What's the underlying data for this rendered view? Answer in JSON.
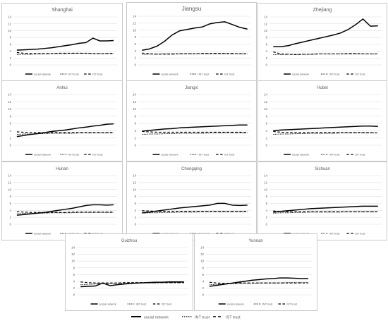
{
  "legend": {
    "social": "social network",
    "int": "INT trust",
    "ist": "IST trust"
  },
  "colors": {
    "line": "#000000",
    "grid": "#d9d9d9",
    "text": "#595959",
    "border": "#c8c8c8"
  },
  "chart_data": [
    {
      "type": "line",
      "title": "Shanghai",
      "x": [
        1,
        2,
        3,
        4,
        5,
        6,
        7,
        8,
        9,
        10,
        11,
        12,
        13,
        14,
        15
      ],
      "ylim": [
        0,
        14
      ],
      "yticks": [
        0,
        2,
        4,
        6,
        8,
        10,
        12,
        14
      ],
      "series": [
        {
          "name": "social network",
          "values": [
            4.3,
            4.4,
            4.5,
            4.6,
            4.8,
            5.0,
            5.3,
            5.6,
            5.9,
            6.3,
            6.5,
            7.8,
            7.0,
            7.0,
            7.1
          ]
        },
        {
          "name": "INT trust",
          "values": [
            3.0,
            3.1,
            3.1,
            3.2,
            3.2,
            3.3,
            3.3,
            3.3,
            3.4,
            3.4,
            3.4,
            3.3,
            3.3,
            3.3,
            3.3
          ]
        },
        {
          "name": "IST trust",
          "values": [
            3.6,
            3.4,
            3.3,
            3.3,
            3.3,
            3.3,
            3.4,
            3.4,
            3.4,
            3.4,
            3.4,
            3.3,
            3.3,
            3.3,
            3.4
          ]
        }
      ]
    },
    {
      "type": "line",
      "title": "Jiangsu",
      "x": [
        1,
        2,
        3,
        4,
        5,
        6,
        7,
        8,
        9,
        10,
        11,
        12,
        13,
        14,
        15
      ],
      "ylim": [
        0,
        14
      ],
      "yticks": [
        0,
        2,
        4,
        6,
        8,
        10,
        12,
        14
      ],
      "series": [
        {
          "name": "social network",
          "values": [
            4.2,
            4.6,
            5.4,
            6.8,
            8.6,
            9.8,
            10.2,
            10.6,
            10.9,
            11.8,
            12.2,
            12.4,
            11.6,
            10.8,
            10.3
          ]
        },
        {
          "name": "INT trust",
          "values": [
            3.0,
            3.1,
            3.1,
            3.2,
            3.2,
            3.2,
            3.2,
            3.2,
            3.2,
            3.2,
            3.2,
            3.2,
            3.2,
            3.2,
            3.2
          ]
        },
        {
          "name": "IST trust",
          "values": [
            3.4,
            3.2,
            3.1,
            3.1,
            3.1,
            3.2,
            3.2,
            3.2,
            3.3,
            3.3,
            3.3,
            3.3,
            3.3,
            3.2,
            3.2
          ]
        }
      ]
    },
    {
      "type": "line",
      "title": "Zhejiang",
      "x": [
        1,
        2,
        3,
        4,
        5,
        6,
        7,
        8,
        9,
        10,
        11,
        12,
        13,
        14,
        15
      ],
      "ylim": [
        0,
        14
      ],
      "yticks": [
        0,
        2,
        4,
        6,
        8,
        10,
        12,
        14
      ],
      "series": [
        {
          "name": "social network",
          "values": [
            5.3,
            5.3,
            5.6,
            6.2,
            6.7,
            7.2,
            7.7,
            8.2,
            8.7,
            9.3,
            10.3,
            11.7,
            13.4,
            11.3,
            11.4
          ]
        },
        {
          "name": "INT trust",
          "values": [
            3.0,
            3.0,
            3.1,
            3.1,
            3.1,
            3.1,
            3.2,
            3.2,
            3.2,
            3.2,
            3.2,
            3.2,
            3.2,
            3.2,
            3.2
          ]
        },
        {
          "name": "IST trust",
          "values": [
            3.8,
            3.2,
            3.1,
            3.0,
            3.1,
            3.1,
            3.2,
            3.2,
            3.2,
            3.2,
            3.3,
            3.3,
            3.2,
            3.2,
            3.2
          ]
        }
      ]
    },
    {
      "type": "line",
      "title": "Anhui",
      "x": [
        1,
        2,
        3,
        4,
        5,
        6,
        7,
        8,
        9,
        10,
        11,
        12,
        13,
        14,
        15
      ],
      "ylim": [
        0,
        14
      ],
      "yticks": [
        0,
        2,
        4,
        6,
        8,
        10,
        12,
        14
      ],
      "series": [
        {
          "name": "social network",
          "values": [
            2.4,
            2.7,
            3.0,
            3.2,
            3.5,
            3.8,
            4.0,
            4.2,
            4.5,
            4.8,
            5.0,
            5.3,
            5.5,
            5.8,
            5.9
          ]
        },
        {
          "name": "INT trust",
          "values": [
            3.0,
            3.1,
            3.1,
            3.2,
            3.2,
            3.3,
            3.3,
            3.3,
            3.3,
            3.4,
            3.4,
            3.4,
            3.4,
            3.4,
            3.4
          ]
        },
        {
          "name": "IST trust",
          "values": [
            3.7,
            3.6,
            3.5,
            3.5,
            3.5,
            3.5,
            3.5,
            3.5,
            3.5,
            3.5,
            3.5,
            3.5,
            3.5,
            3.5,
            3.5
          ]
        }
      ]
    },
    {
      "type": "line",
      "title": "Jiangxi",
      "x": [
        1,
        2,
        3,
        4,
        5,
        6,
        7,
        8,
        9,
        10,
        11,
        12,
        13,
        14,
        15
      ],
      "ylim": [
        0,
        14
      ],
      "yticks": [
        0,
        2,
        4,
        6,
        8,
        10,
        12,
        14
      ],
      "series": [
        {
          "name": "social network",
          "values": [
            3.9,
            4.1,
            4.3,
            4.5,
            4.6,
            4.8,
            4.9,
            5.0,
            5.1,
            5.2,
            5.3,
            5.4,
            5.5,
            5.6,
            5.6
          ]
        },
        {
          "name": "INT trust",
          "values": [
            3.0,
            3.1,
            3.1,
            3.2,
            3.2,
            3.3,
            3.3,
            3.3,
            3.3,
            3.4,
            3.4,
            3.4,
            3.4,
            3.4,
            3.4
          ]
        },
        {
          "name": "IST trust",
          "values": [
            3.8,
            3.7,
            3.6,
            3.6,
            3.6,
            3.6,
            3.6,
            3.6,
            3.6,
            3.6,
            3.6,
            3.6,
            3.6,
            3.6,
            3.5
          ]
        }
      ]
    },
    {
      "type": "line",
      "title": "Hubei",
      "x": [
        1,
        2,
        3,
        4,
        5,
        6,
        7,
        8,
        9,
        10,
        11,
        12,
        13,
        14,
        15
      ],
      "ylim": [
        0,
        14
      ],
      "yticks": [
        0,
        2,
        4,
        6,
        8,
        10,
        12,
        14
      ],
      "series": [
        {
          "name": "social network",
          "values": [
            4.0,
            4.2,
            4.3,
            4.4,
            4.5,
            4.6,
            4.7,
            4.8,
            4.9,
            5.0,
            5.1,
            5.2,
            5.3,
            5.3,
            5.2
          ]
        },
        {
          "name": "INT trust",
          "values": [
            3.0,
            3.1,
            3.1,
            3.2,
            3.2,
            3.3,
            3.3,
            3.3,
            3.3,
            3.4,
            3.4,
            3.4,
            3.4,
            3.4,
            3.4
          ]
        },
        {
          "name": "IST trust",
          "values": [
            3.8,
            3.6,
            3.5,
            3.5,
            3.5,
            3.5,
            3.5,
            3.5,
            3.5,
            3.5,
            3.5,
            3.5,
            3.5,
            3.5,
            3.4
          ]
        }
      ]
    },
    {
      "type": "line",
      "title": "Hunan",
      "x": [
        1,
        2,
        3,
        4,
        5,
        6,
        7,
        8,
        9,
        10,
        11,
        12,
        13,
        14,
        15
      ],
      "ylim": [
        0,
        14
      ],
      "yticks": [
        0,
        2,
        4,
        6,
        8,
        10,
        12,
        14
      ],
      "series": [
        {
          "name": "social network",
          "values": [
            2.6,
            2.8,
            3.0,
            3.2,
            3.4,
            3.7,
            4.0,
            4.3,
            4.6,
            5.0,
            5.4,
            5.6,
            5.6,
            5.5,
            5.6
          ]
        },
        {
          "name": "INT trust",
          "values": [
            3.0,
            3.1,
            3.1,
            3.2,
            3.2,
            3.3,
            3.3,
            3.3,
            3.3,
            3.4,
            3.4,
            3.4,
            3.4,
            3.4,
            3.4
          ]
        },
        {
          "name": "IST trust",
          "values": [
            3.6,
            3.5,
            3.4,
            3.4,
            3.4,
            3.4,
            3.4,
            3.4,
            3.5,
            3.5,
            3.5,
            3.5,
            3.5,
            3.5,
            3.5
          ]
        }
      ]
    },
    {
      "type": "line",
      "title": "Chongqing",
      "x": [
        1,
        2,
        3,
        4,
        5,
        6,
        7,
        8,
        9,
        10,
        11,
        12,
        13,
        14,
        15
      ],
      "ylim": [
        0,
        14
      ],
      "yticks": [
        0,
        2,
        4,
        6,
        8,
        10,
        12,
        14
      ],
      "series": [
        {
          "name": "social network",
          "values": [
            3.3,
            3.5,
            3.8,
            4.1,
            4.4,
            4.7,
            4.9,
            5.1,
            5.3,
            5.5,
            6.0,
            6.0,
            5.5,
            5.4,
            5.5
          ]
        },
        {
          "name": "INT trust",
          "values": [
            3.2,
            3.3,
            3.3,
            3.4,
            3.4,
            3.5,
            3.5,
            3.5,
            3.6,
            3.6,
            3.6,
            3.6,
            3.6,
            3.6,
            3.6
          ]
        },
        {
          "name": "IST trust",
          "values": [
            3.9,
            3.8,
            3.7,
            3.7,
            3.7,
            3.7,
            3.7,
            3.7,
            3.7,
            3.7,
            3.7,
            3.7,
            3.7,
            3.7,
            3.7
          ]
        }
      ]
    },
    {
      "type": "line",
      "title": "Sichuan",
      "x": [
        1,
        2,
        3,
        4,
        5,
        6,
        7,
        8,
        9,
        10,
        11,
        12,
        13,
        14,
        15
      ],
      "ylim": [
        0,
        14
      ],
      "yticks": [
        0,
        2,
        4,
        6,
        8,
        10,
        12,
        14
      ],
      "series": [
        {
          "name": "social network",
          "values": [
            3.5,
            3.7,
            3.9,
            4.1,
            4.3,
            4.5,
            4.6,
            4.7,
            4.8,
            4.9,
            5.0,
            5.1,
            5.2,
            5.2,
            5.2
          ]
        },
        {
          "name": "INT trust",
          "values": [
            3.2,
            3.3,
            3.3,
            3.4,
            3.4,
            3.5,
            3.5,
            3.5,
            3.5,
            3.5,
            3.6,
            3.6,
            3.6,
            3.6,
            3.6
          ]
        },
        {
          "name": "IST trust",
          "values": [
            3.8,
            3.7,
            3.6,
            3.6,
            3.6,
            3.6,
            3.6,
            3.6,
            3.6,
            3.6,
            3.6,
            3.6,
            3.6,
            3.6,
            3.6
          ]
        }
      ]
    },
    {
      "type": "line",
      "title": "Guizhou",
      "x": [
        1,
        2,
        3,
        4,
        5,
        6,
        7,
        8,
        9,
        10,
        11,
        12,
        13,
        14,
        15
      ],
      "ylim": [
        0,
        14
      ],
      "yticks": [
        0,
        2,
        4,
        6,
        8,
        10,
        12,
        14
      ],
      "series": [
        {
          "name": "social network",
          "values": [
            2.4,
            2.5,
            2.6,
            3.5,
            2.7,
            3.0,
            3.2,
            3.4,
            3.5,
            3.6,
            3.7,
            3.7,
            3.8,
            3.8,
            3.8
          ]
        },
        {
          "name": "INT trust",
          "values": [
            3.0,
            3.1,
            3.2,
            3.3,
            3.3,
            3.4,
            3.4,
            3.5,
            3.5,
            3.5,
            3.5,
            3.6,
            3.6,
            3.6,
            3.6
          ]
        },
        {
          "name": "IST trust",
          "values": [
            3.8,
            3.6,
            3.5,
            3.5,
            3.5,
            3.5,
            3.6,
            3.6,
            3.6,
            3.6,
            3.6,
            3.6,
            3.6,
            3.6,
            3.6
          ]
        }
      ]
    },
    {
      "type": "line",
      "title": "Yunnan",
      "x": [
        1,
        2,
        3,
        4,
        5,
        6,
        7,
        8,
        9,
        10,
        11,
        12,
        13,
        14,
        15
      ],
      "ylim": [
        0,
        14
      ],
      "yticks": [
        0,
        2,
        4,
        6,
        8,
        10,
        12,
        14
      ],
      "series": [
        {
          "name": "social network",
          "values": [
            2.5,
            2.8,
            3.1,
            3.4,
            3.7,
            4.0,
            4.3,
            4.5,
            4.7,
            4.8,
            5.0,
            5.0,
            4.9,
            4.8,
            4.8
          ]
        },
        {
          "name": "INT trust",
          "values": [
            3.0,
            3.1,
            3.2,
            3.3,
            3.3,
            3.4,
            3.4,
            3.5,
            3.5,
            3.5,
            3.5,
            3.6,
            3.6,
            3.6,
            3.6
          ]
        },
        {
          "name": "IST trust",
          "values": [
            3.7,
            3.5,
            3.4,
            3.4,
            3.5,
            3.5,
            3.5,
            3.5,
            3.5,
            3.5,
            3.5,
            3.5,
            3.5,
            3.5,
            3.5
          ]
        }
      ]
    }
  ]
}
